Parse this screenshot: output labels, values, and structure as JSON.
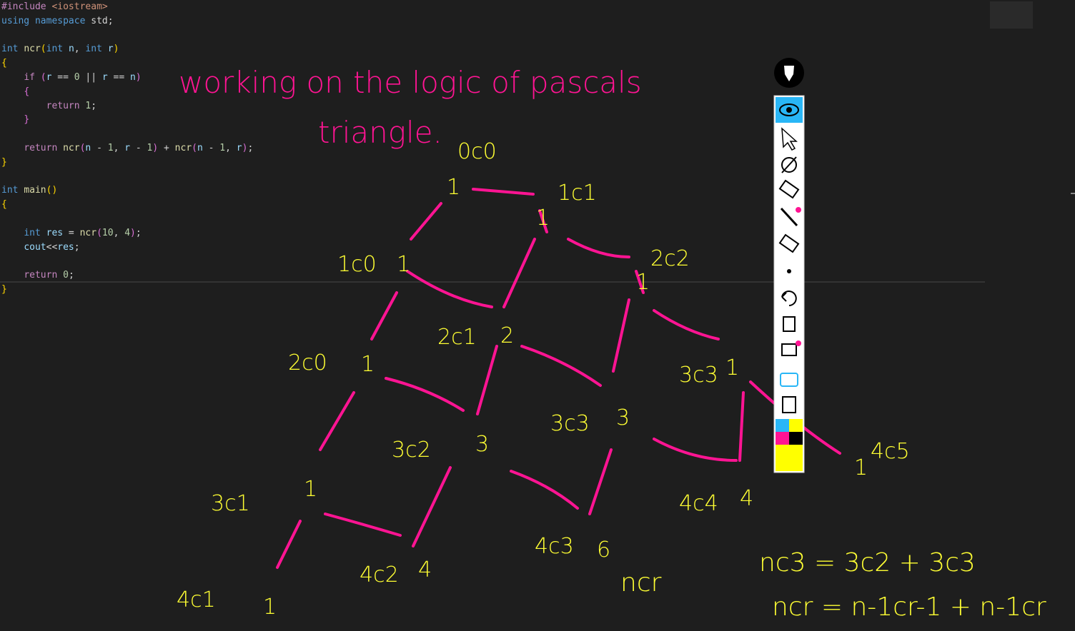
{
  "code": {
    "lines": [
      [
        {
          "text": "#include",
          "color": "#c586c0"
        },
        {
          "text": " ",
          "color": "#d4d4d4"
        },
        {
          "text": "<iostream>",
          "color": "#ce9178"
        }
      ],
      [
        {
          "text": "using",
          "color": "#569cd6"
        },
        {
          "text": " ",
          "color": "#d4d4d4"
        },
        {
          "text": "namespace",
          "color": "#569cd6"
        },
        {
          "text": " std;",
          "color": "#d4d4d4"
        }
      ],
      [],
      [
        {
          "text": "int",
          "color": "#569cd6"
        },
        {
          "text": " ",
          "color": "#d4d4d4"
        },
        {
          "text": "ncr",
          "color": "#dcdcaa"
        },
        {
          "text": "(",
          "color": "#ffd700"
        },
        {
          "text": "int",
          "color": "#569cd6"
        },
        {
          "text": " ",
          "color": "#d4d4d4"
        },
        {
          "text": "n",
          "color": "#9cdcfe"
        },
        {
          "text": ", ",
          "color": "#d4d4d4"
        },
        {
          "text": "int",
          "color": "#569cd6"
        },
        {
          "text": " ",
          "color": "#d4d4d4"
        },
        {
          "text": "r",
          "color": "#9cdcfe"
        },
        {
          "text": ")",
          "color": "#ffd700"
        }
      ],
      [
        {
          "text": "{",
          "color": "#ffd700"
        }
      ],
      [
        {
          "text": "    ",
          "color": "#d4d4d4"
        },
        {
          "text": "if",
          "color": "#c586c0"
        },
        {
          "text": " ",
          "color": "#d4d4d4"
        },
        {
          "text": "(",
          "color": "#da70d6"
        },
        {
          "text": "r",
          "color": "#9cdcfe"
        },
        {
          "text": " == ",
          "color": "#d4d4d4"
        },
        {
          "text": "0",
          "color": "#b5cea8"
        },
        {
          "text": " || ",
          "color": "#d4d4d4"
        },
        {
          "text": "r",
          "color": "#9cdcfe"
        },
        {
          "text": " == ",
          "color": "#d4d4d4"
        },
        {
          "text": "n",
          "color": "#9cdcfe"
        },
        {
          "text": ")",
          "color": "#da70d6"
        }
      ],
      [
        {
          "text": "    ",
          "color": "#d4d4d4"
        },
        {
          "text": "{",
          "color": "#da70d6"
        }
      ],
      [
        {
          "text": "        ",
          "color": "#d4d4d4"
        },
        {
          "text": "return",
          "color": "#c586c0"
        },
        {
          "text": " ",
          "color": "#d4d4d4"
        },
        {
          "text": "1",
          "color": "#b5cea8"
        },
        {
          "text": ";",
          "color": "#d4d4d4"
        }
      ],
      [
        {
          "text": "    ",
          "color": "#d4d4d4"
        },
        {
          "text": "}",
          "color": "#da70d6"
        }
      ],
      [],
      [
        {
          "text": "    ",
          "color": "#d4d4d4"
        },
        {
          "text": "return",
          "color": "#c586c0"
        },
        {
          "text": " ",
          "color": "#d4d4d4"
        },
        {
          "text": "ncr",
          "color": "#dcdcaa"
        },
        {
          "text": "(",
          "color": "#da70d6"
        },
        {
          "text": "n",
          "color": "#9cdcfe"
        },
        {
          "text": " - ",
          "color": "#d4d4d4"
        },
        {
          "text": "1",
          "color": "#b5cea8"
        },
        {
          "text": ", ",
          "color": "#d4d4d4"
        },
        {
          "text": "r",
          "color": "#9cdcfe"
        },
        {
          "text": " - ",
          "color": "#d4d4d4"
        },
        {
          "text": "1",
          "color": "#b5cea8"
        },
        {
          "text": ")",
          "color": "#da70d6"
        },
        {
          "text": " + ",
          "color": "#d4d4d4"
        },
        {
          "text": "ncr",
          "color": "#dcdcaa"
        },
        {
          "text": "(",
          "color": "#da70d6"
        },
        {
          "text": "n",
          "color": "#9cdcfe"
        },
        {
          "text": " - ",
          "color": "#d4d4d4"
        },
        {
          "text": "1",
          "color": "#b5cea8"
        },
        {
          "text": ", ",
          "color": "#d4d4d4"
        },
        {
          "text": "r",
          "color": "#9cdcfe"
        },
        {
          "text": ")",
          "color": "#da70d6"
        },
        {
          "text": ";",
          "color": "#d4d4d4"
        }
      ],
      [
        {
          "text": "}",
          "color": "#ffd700"
        }
      ],
      [],
      [
        {
          "text": "int",
          "color": "#569cd6"
        },
        {
          "text": " ",
          "color": "#d4d4d4"
        },
        {
          "text": "main",
          "color": "#dcdcaa"
        },
        {
          "text": "()",
          "color": "#ffd700"
        }
      ],
      [
        {
          "text": "{",
          "color": "#ffd700"
        }
      ],
      [],
      [
        {
          "text": "    ",
          "color": "#d4d4d4"
        },
        {
          "text": "int",
          "color": "#569cd6"
        },
        {
          "text": " ",
          "color": "#d4d4d4"
        },
        {
          "text": "res",
          "color": "#9cdcfe"
        },
        {
          "text": " = ",
          "color": "#d4d4d4"
        },
        {
          "text": "ncr",
          "color": "#dcdcaa"
        },
        {
          "text": "(",
          "color": "#da70d6"
        },
        {
          "text": "10",
          "color": "#b5cea8"
        },
        {
          "text": ", ",
          "color": "#d4d4d4"
        },
        {
          "text": "4",
          "color": "#b5cea8"
        },
        {
          "text": ")",
          "color": "#da70d6"
        },
        {
          "text": ";",
          "color": "#d4d4d4"
        }
      ],
      [
        {
          "text": "    ",
          "color": "#d4d4d4"
        },
        {
          "text": "cout",
          "color": "#9cdcfe"
        },
        {
          "text": "<<",
          "color": "#d4d4d4"
        },
        {
          "text": "res",
          "color": "#9cdcfe"
        },
        {
          "text": ";",
          "color": "#d4d4d4"
        }
      ],
      [],
      [
        {
          "text": "    ",
          "color": "#d4d4d4"
        },
        {
          "text": "return",
          "color": "#c586c0"
        },
        {
          "text": " ",
          "color": "#d4d4d4"
        },
        {
          "text": "0",
          "color": "#b5cea8"
        },
        {
          "text": ";",
          "color": "#d4d4d4"
        }
      ],
      [
        {
          "text": "}",
          "color": "#ffd700"
        }
      ]
    ]
  },
  "annotations": {
    "heading": [
      "working on the logic of pascals",
      "triangle."
    ],
    "labels": [
      "0c0",
      "1",
      "1c1",
      "1c0",
      "1",
      "1",
      "2c2",
      "1",
      "2c1",
      "2",
      "2c0",
      "1",
      "3c3",
      "1",
      "3c3",
      "3",
      "3c2",
      "3",
      "3c1",
      "1",
      "4c4",
      "4",
      "4c5",
      "1",
      "4c3",
      "6",
      "4c2",
      "4",
      "4c1",
      "1",
      "ncr"
    ],
    "formulas": [
      "nc3 = 3c2 + 3c3",
      "ncr = n-1cr-1 + n-1cr"
    ]
  }
}
